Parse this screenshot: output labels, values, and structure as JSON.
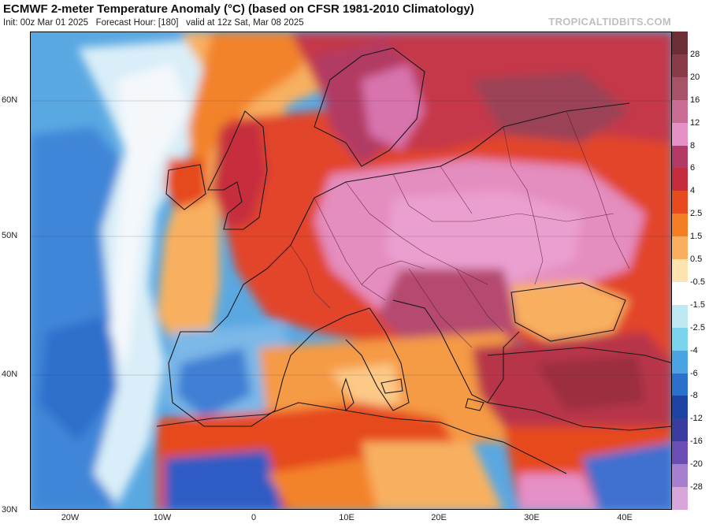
{
  "header": {
    "title": "ECMWF 2-meter Temperature Anomaly (°C) (based on CFSR 1981-2010 Climatology)",
    "init": "Init: 00z Mar 01 2025",
    "forecast_hour": "Forecast Hour: [180]",
    "valid": "valid at 12z Sat, Mar 08 2025",
    "brand": "TROPICALTIDBITS.COM"
  },
  "axes": {
    "lat_labels": [
      "60N",
      "50N",
      "40N",
      "30N"
    ],
    "lon_labels": [
      "20W",
      "10W",
      "0",
      "10E",
      "20E",
      "30E",
      "40E"
    ]
  },
  "colorbar": {
    "labels": [
      "28",
      "20",
      "16",
      "12",
      "8",
      "6",
      "4",
      "2.5",
      "1.5",
      "0.5",
      "-0.5",
      "-1.5",
      "-2.5",
      "-4",
      "-6",
      "-8",
      "-12",
      "-16",
      "-20",
      "-28"
    ],
    "colors": [
      "#6b2e36",
      "#8a3b48",
      "#a8526a",
      "#c86c94",
      "#e690c8",
      "#b23a64",
      "#c62d3c",
      "#e64a1e",
      "#f37d22",
      "#f8b060",
      "#fce3b0",
      "#ffffff",
      "#bfe9f2",
      "#7cd3ee",
      "#4aa3e3",
      "#2a70cc",
      "#1d43a5",
      "#3b3ca0",
      "#6b4fb5",
      "#a67fce",
      "#d9a6dc"
    ]
  }
}
